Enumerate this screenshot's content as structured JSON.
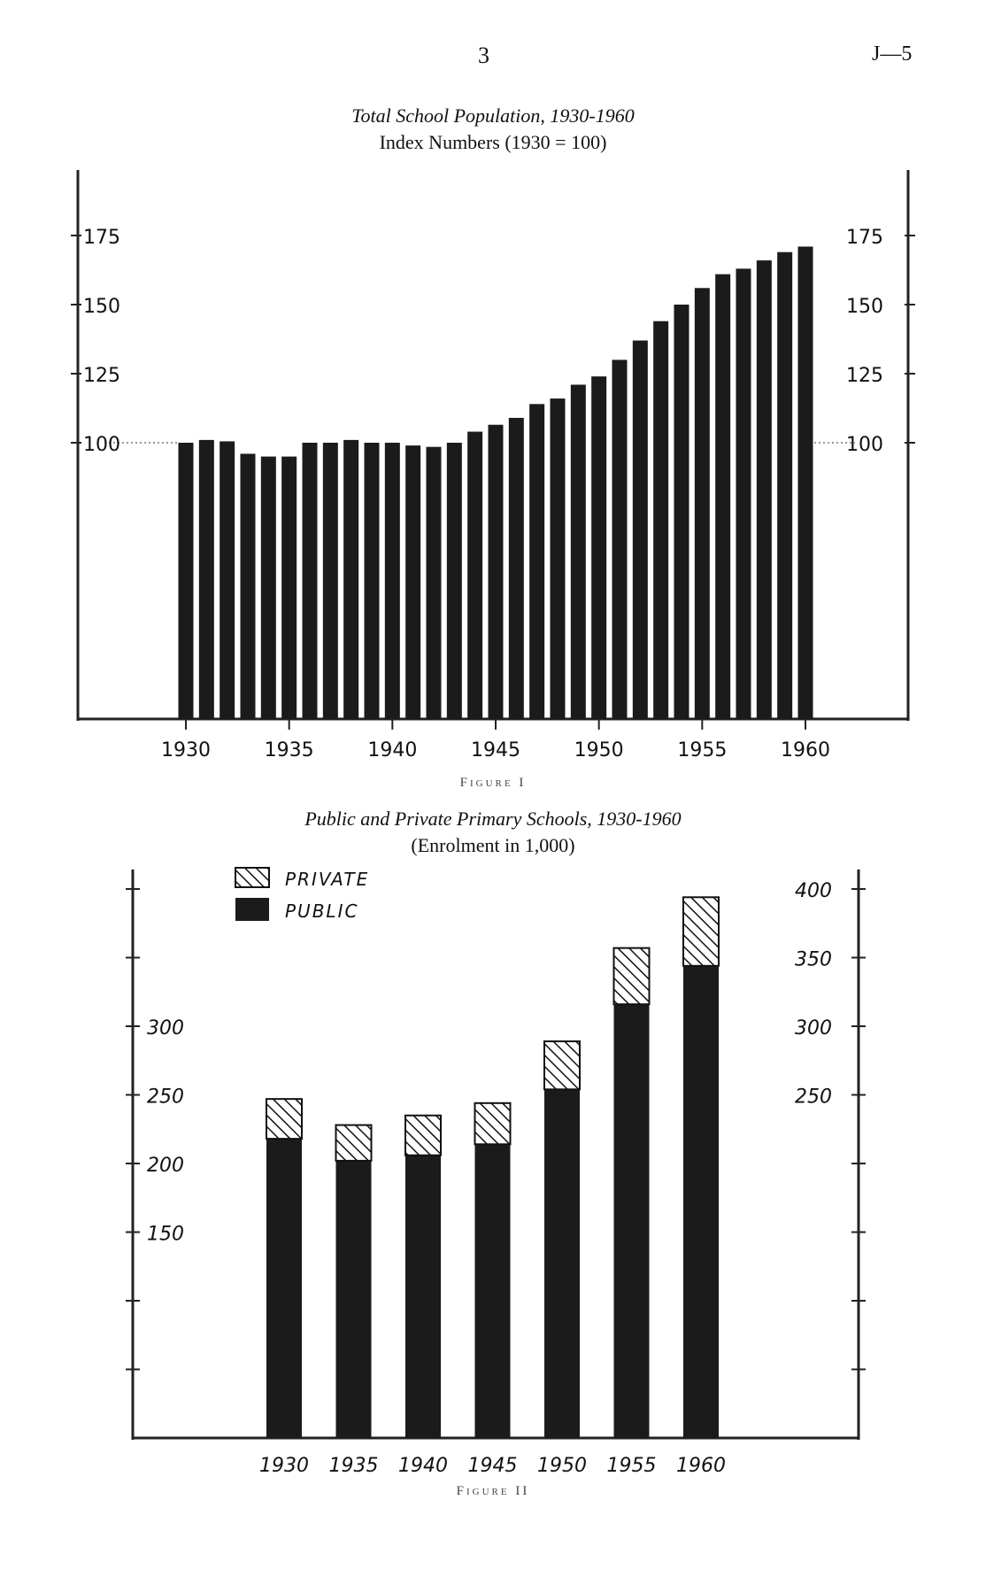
{
  "header": {
    "page_number": "3",
    "doc_ref": "J—5"
  },
  "colors": {
    "bar": "#1b1b1b",
    "private_fill": "#ffffff",
    "axis": "#222222"
  },
  "chart_data": [
    {
      "type": "bar",
      "title": "Total School Population, 1930-1960",
      "subtitle": "Index Numbers (1930 = 100)",
      "caption": "Figure I",
      "x": [
        1930,
        1931,
        1932,
        1933,
        1934,
        1935,
        1936,
        1937,
        1938,
        1939,
        1940,
        1941,
        1942,
        1943,
        1944,
        1945,
        1946,
        1947,
        1948,
        1949,
        1950,
        1951,
        1952,
        1953,
        1954,
        1955,
        1956,
        1957,
        1958,
        1959,
        1960
      ],
      "values": [
        100,
        101,
        100.5,
        96,
        95,
        95,
        100,
        100,
        101,
        100,
        100,
        99,
        98.5,
        100,
        104,
        106.5,
        109,
        114,
        116,
        121,
        124,
        130,
        137,
        144,
        150,
        156,
        161,
        163,
        166,
        169,
        171
      ],
      "x_tick_labels": [
        "1930",
        "1935",
        "1940",
        "1945",
        "1950",
        "1955",
        "1960"
      ],
      "y_tick_labels": [
        "100",
        "125",
        "150",
        "175"
      ],
      "ylim": [
        0,
        195
      ],
      "reference_line": 100,
      "grid": false,
      "legend": "none"
    },
    {
      "type": "bar",
      "stacked": true,
      "title": "Public and Private Primary Schools, 1930-1960",
      "subtitle": "(Enrolment in 1,000)",
      "caption": "Figure II",
      "categories": [
        "1930",
        "1935",
        "1940",
        "1945",
        "1950",
        "1955",
        "1960"
      ],
      "series": [
        {
          "name": "PUBLIC",
          "values": [
            218,
            202,
            206,
            214,
            254,
            316,
            344
          ]
        },
        {
          "name": "PRIVATE",
          "values": [
            29,
            26,
            29,
            30,
            35,
            41,
            50
          ]
        }
      ],
      "left_tick_labels": [
        "150",
        "200",
        "250",
        "300"
      ],
      "right_tick_labels": [
        "250",
        "300",
        "350",
        "400"
      ],
      "ylim": [
        0,
        415
      ],
      "grid": false,
      "legend": "top-left"
    }
  ]
}
